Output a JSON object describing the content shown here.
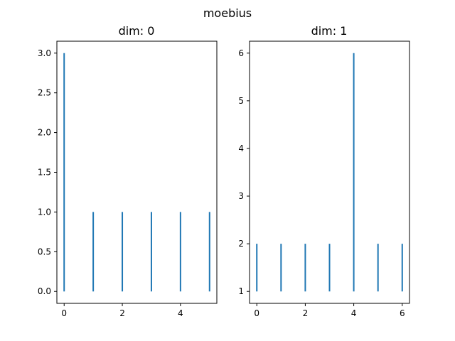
{
  "figure": {
    "suptitle": "moebius",
    "color": "#1f77b4"
  },
  "chart_data": [
    {
      "type": "bar",
      "style": "vertical lines (vlines) from baseline",
      "title": "dim: 0",
      "xlabel": "",
      "ylabel": "",
      "baseline": 0,
      "x": [
        0,
        1,
        2,
        3,
        4,
        5
      ],
      "values": [
        3,
        1,
        1,
        1,
        1,
        1
      ],
      "xlim": [
        -0.25,
        5.25
      ],
      "ylim": [
        -0.15,
        3.15
      ],
      "xticks": [
        0,
        2,
        4
      ],
      "xtick_labels": [
        "0",
        "2",
        "4"
      ],
      "yticks": [
        0,
        0.5,
        1,
        1.5,
        2,
        2.5,
        3
      ],
      "ytick_labels": [
        "0.0",
        "0.5",
        "1.0",
        "1.5",
        "2.0",
        "2.5",
        "3.0"
      ],
      "grid": false,
      "legend": "none"
    },
    {
      "type": "bar",
      "style": "vertical lines (vlines) from baseline",
      "title": "dim: 1",
      "xlabel": "",
      "ylabel": "",
      "baseline": 1,
      "x": [
        0,
        1,
        2,
        3,
        4,
        5,
        6
      ],
      "values": [
        2,
        2,
        2,
        2,
        6,
        2,
        2
      ],
      "xlim": [
        -0.3,
        6.3
      ],
      "ylim": [
        0.75,
        6.25
      ],
      "xticks": [
        0,
        2,
        4,
        6
      ],
      "xtick_labels": [
        "0",
        "2",
        "4",
        "6"
      ],
      "yticks": [
        1,
        2,
        3,
        4,
        5,
        6
      ],
      "ytick_labels": [
        "1",
        "2",
        "3",
        "4",
        "5",
        "6"
      ],
      "grid": false,
      "legend": "none"
    }
  ]
}
